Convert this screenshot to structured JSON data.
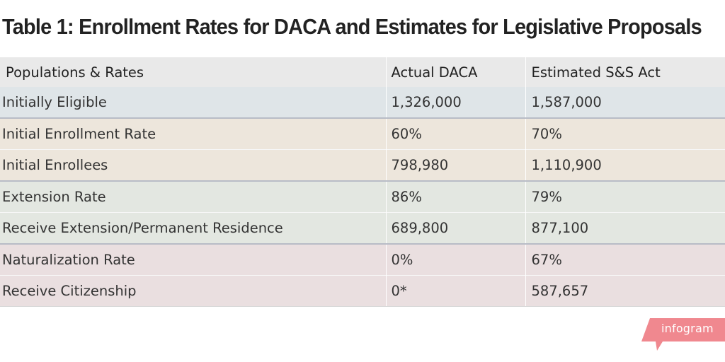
{
  "chart_data": {
    "type": "table",
    "title": "Table 1: Enrollment Rates for DACA and Estimates for Legislative Proposals",
    "columns": [
      "Populations & Rates",
      "Actual DACA",
      "Estimated S&S Act"
    ],
    "rows": [
      {
        "label": "Initially Eligible",
        "actual_daca": "1,326,000",
        "estimated_ss_act": "1,587,000",
        "group": "blue"
      },
      {
        "label": "Initial Enrollment Rate",
        "actual_daca": "60%",
        "estimated_ss_act": "70%",
        "group": "tan"
      },
      {
        "label": "Initial Enrollees",
        "actual_daca": "798,980",
        "estimated_ss_act": "1,110,900",
        "group": "tan"
      },
      {
        "label": "Extension Rate",
        "actual_daca": "86%",
        "estimated_ss_act": "79%",
        "group": "green"
      },
      {
        "label": "Receive Extension/Permanent Residence",
        "actual_daca": "689,800",
        "estimated_ss_act": "877,100",
        "group": "green"
      },
      {
        "label": "Naturalization Rate",
        "actual_daca": "0%",
        "estimated_ss_act": "67%",
        "group": "pink"
      },
      {
        "label": "Receive Citizenship",
        "actual_daca": "0*",
        "estimated_ss_act": "587,657",
        "group": "pink"
      }
    ],
    "group_colors": {
      "header": "#e9e9e9",
      "blue": "#dfe5e8",
      "tan": "#ede6dc",
      "green": "#e3e7e1",
      "pink": "#eadfe0"
    }
  },
  "brand": {
    "label": "infogram",
    "color": "#f0888f"
  }
}
